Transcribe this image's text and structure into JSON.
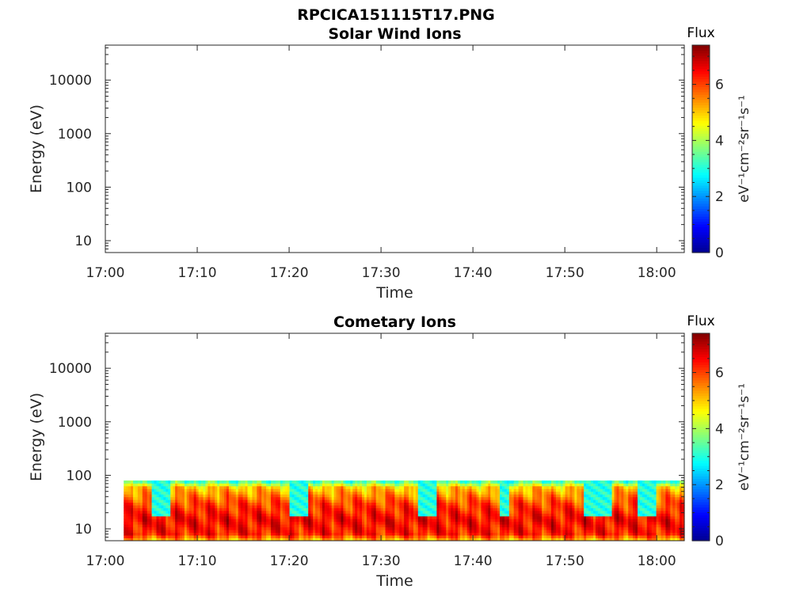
{
  "figure_title": "RPCICA151115T17.PNG",
  "colors": {
    "colormap": [
      "#00008f",
      "#0000ff",
      "#0080ff",
      "#00ffff",
      "#80ff80",
      "#ffff00",
      "#ff8000",
      "#ff0000",
      "#800000"
    ],
    "axis": "#262626"
  },
  "chart_data": [
    {
      "type": "heatmap",
      "title": "Solar Wind Ions",
      "xlabel": "Time",
      "ylabel": "Energy (eV)",
      "x_ticks": [
        "17:00",
        "17:10",
        "17:20",
        "17:30",
        "17:40",
        "17:50",
        "18:00"
      ],
      "x_range": [
        "17:00",
        "18:03"
      ],
      "y_scale": "log",
      "y_ticks": [
        "10",
        "100",
        "1000",
        "10000"
      ],
      "y_range": [
        6,
        45000
      ],
      "colorbar": {
        "title": "Flux",
        "label": "eV⁻¹cm⁻²sr⁻¹s⁻¹",
        "ticks": [
          "0",
          "2",
          "4",
          "6"
        ],
        "range": [
          0,
          7.4
        ]
      },
      "data": "empty"
    },
    {
      "type": "heatmap",
      "title": "Cometary Ions",
      "xlabel": "Time",
      "ylabel": "Energy (eV)",
      "x_ticks": [
        "17:00",
        "17:10",
        "17:20",
        "17:30",
        "17:40",
        "17:50",
        "18:00"
      ],
      "x_range": [
        "17:00",
        "18:03"
      ],
      "y_scale": "log",
      "y_ticks": [
        "10",
        "100",
        "1000",
        "10000"
      ],
      "y_range": [
        6,
        45000
      ],
      "colorbar": {
        "title": "Flux",
        "label": "eV⁻¹cm⁻²sr⁻¹s⁻¹",
        "ticks": [
          "0",
          "2",
          "4",
          "6"
        ],
        "range": [
          0,
          7.4
        ]
      },
      "data_coverage": {
        "time_start": "17:02",
        "time_end": "18:03",
        "energy_min": 6,
        "energy_max": 80
      },
      "flux_by_energy": [
        {
          "energy": 80,
          "flux": 3.0
        },
        {
          "energy": 60,
          "flux": 5.0
        },
        {
          "energy": 30,
          "flux": 6.0
        },
        {
          "energy": 15,
          "flux": 6.5
        },
        {
          "energy": 8,
          "flux": 6.3
        },
        {
          "energy": 6,
          "flux": 5.0
        }
      ],
      "low_flux_intervals": [
        {
          "start": "17:05",
          "end": "17:07",
          "flux": 3.0
        },
        {
          "start": "17:20",
          "end": "17:22",
          "flux": 3.0
        },
        {
          "start": "17:34",
          "end": "17:36",
          "flux": 3.0
        },
        {
          "start": "17:43",
          "end": "17:44",
          "flux": 3.0
        },
        {
          "start": "17:52",
          "end": "17:55",
          "flux": 3.0
        },
        {
          "start": "17:58",
          "end": "18:00",
          "flux": 3.0
        }
      ]
    }
  ]
}
